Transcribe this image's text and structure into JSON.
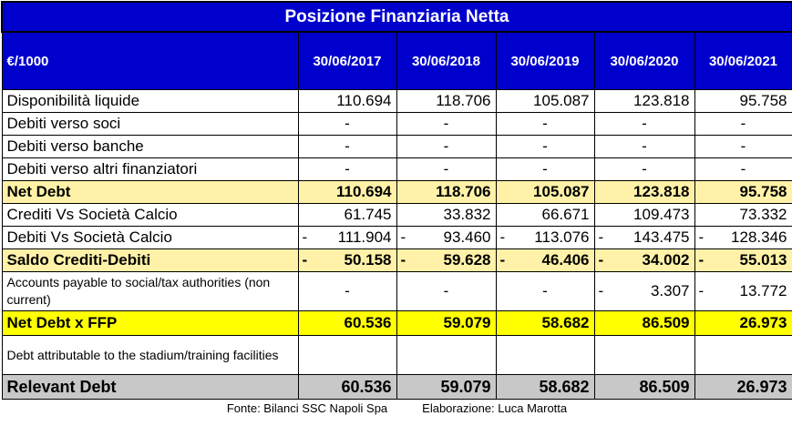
{
  "title": "Posizione Finanziaria Netta",
  "header": {
    "unit": "€/1000",
    "dates": [
      "30/06/2017",
      "30/06/2018",
      "30/06/2019",
      "30/06/2020",
      "30/06/2021"
    ]
  },
  "rows": [
    {
      "label": "Disponibilità liquide",
      "values": [
        "110.694",
        "118.706",
        "105.087",
        "123.818",
        "95.758"
      ],
      "neg": [
        false,
        false,
        false,
        false,
        false
      ]
    },
    {
      "label": "Debiti verso soci",
      "values": [
        "-",
        "-",
        "-",
        "-",
        "-"
      ],
      "neg": [
        false,
        false,
        false,
        false,
        false
      ]
    },
    {
      "label": "Debiti verso banche",
      "values": [
        "-",
        "-",
        "-",
        "-",
        "-"
      ],
      "neg": [
        false,
        false,
        false,
        false,
        false
      ]
    },
    {
      "label": "Debiti verso altri finanziatori",
      "values": [
        "-",
        "-",
        "-",
        "-",
        "-"
      ],
      "neg": [
        false,
        false,
        false,
        false,
        false
      ]
    },
    {
      "label": "Net Debt",
      "values": [
        "110.694",
        "118.706",
        "105.087",
        "123.818",
        "95.758"
      ],
      "neg": [
        false,
        false,
        false,
        false,
        false
      ]
    },
    {
      "label": "Crediti Vs Società Calcio",
      "values": [
        "61.745",
        "33.832",
        "66.671",
        "109.473",
        "73.332"
      ],
      "neg": [
        false,
        false,
        false,
        false,
        false
      ]
    },
    {
      "label": "Debiti Vs Società Calcio",
      "values": [
        "111.904",
        "93.460",
        "113.076",
        "143.475",
        "128.346"
      ],
      "neg": [
        true,
        true,
        true,
        true,
        true
      ]
    },
    {
      "label": "Saldo Crediti-Debiti",
      "values": [
        "50.158",
        "59.628",
        "46.406",
        "34.002",
        "55.013"
      ],
      "neg": [
        true,
        true,
        true,
        true,
        true
      ]
    },
    {
      "label": "Accounts payable to social/tax authorities (non current)",
      "values": [
        "-",
        "-",
        "-",
        "3.307",
        "13.772"
      ],
      "neg": [
        false,
        false,
        false,
        true,
        true
      ]
    },
    {
      "label": "Net Debt x FFP",
      "values": [
        "60.536",
        "59.079",
        "58.682",
        "86.509",
        "26.973"
      ],
      "neg": [
        false,
        false,
        false,
        false,
        false
      ]
    },
    {
      "label": "Debt attributable to the stadium/training facilities",
      "values": [
        "",
        "",
        "",
        "",
        ""
      ],
      "neg": [
        false,
        false,
        false,
        false,
        false
      ]
    },
    {
      "label": "Relevant Debt",
      "values": [
        "60.536",
        "59.079",
        "58.682",
        "86.509",
        "26.973"
      ],
      "neg": [
        false,
        false,
        false,
        false,
        false
      ]
    }
  ],
  "footer": {
    "source": "Fonte: Bilanci SSC Napoli Spa",
    "author": "Elaborazione: Luca Marotta"
  }
}
